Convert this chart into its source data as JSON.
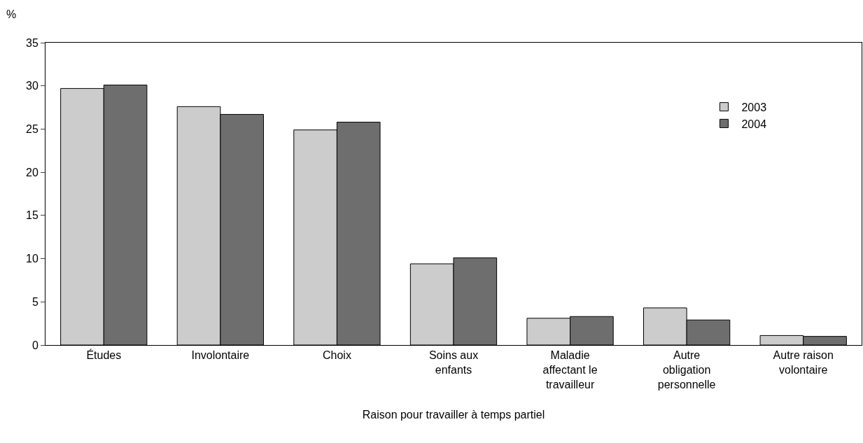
{
  "chart_data": {
    "type": "bar",
    "xlabel": "Raison pour travailler à temps partiel",
    "ylabel": "%",
    "categories": [
      "Études",
      "Involontaire",
      "Choix",
      "Soins aux enfants",
      "Maladie affectant le travailleur",
      "Autre obligation personnelle",
      "Autre raison volontaire"
    ],
    "series": [
      {
        "name": "2003",
        "color": "#cccccc",
        "values": [
          29.7,
          27.6,
          24.9,
          9.4,
          3.1,
          4.3,
          1.1
        ]
      },
      {
        "name": "2004",
        "color": "#6e6e6e",
        "values": [
          30.1,
          26.7,
          25.8,
          10.1,
          3.3,
          2.9,
          1.0
        ]
      }
    ],
    "ylim": [
      0,
      35
    ],
    "yticks": [
      0,
      5,
      10,
      15,
      20,
      25,
      30,
      35
    ],
    "grid": false,
    "legend": "right"
  }
}
